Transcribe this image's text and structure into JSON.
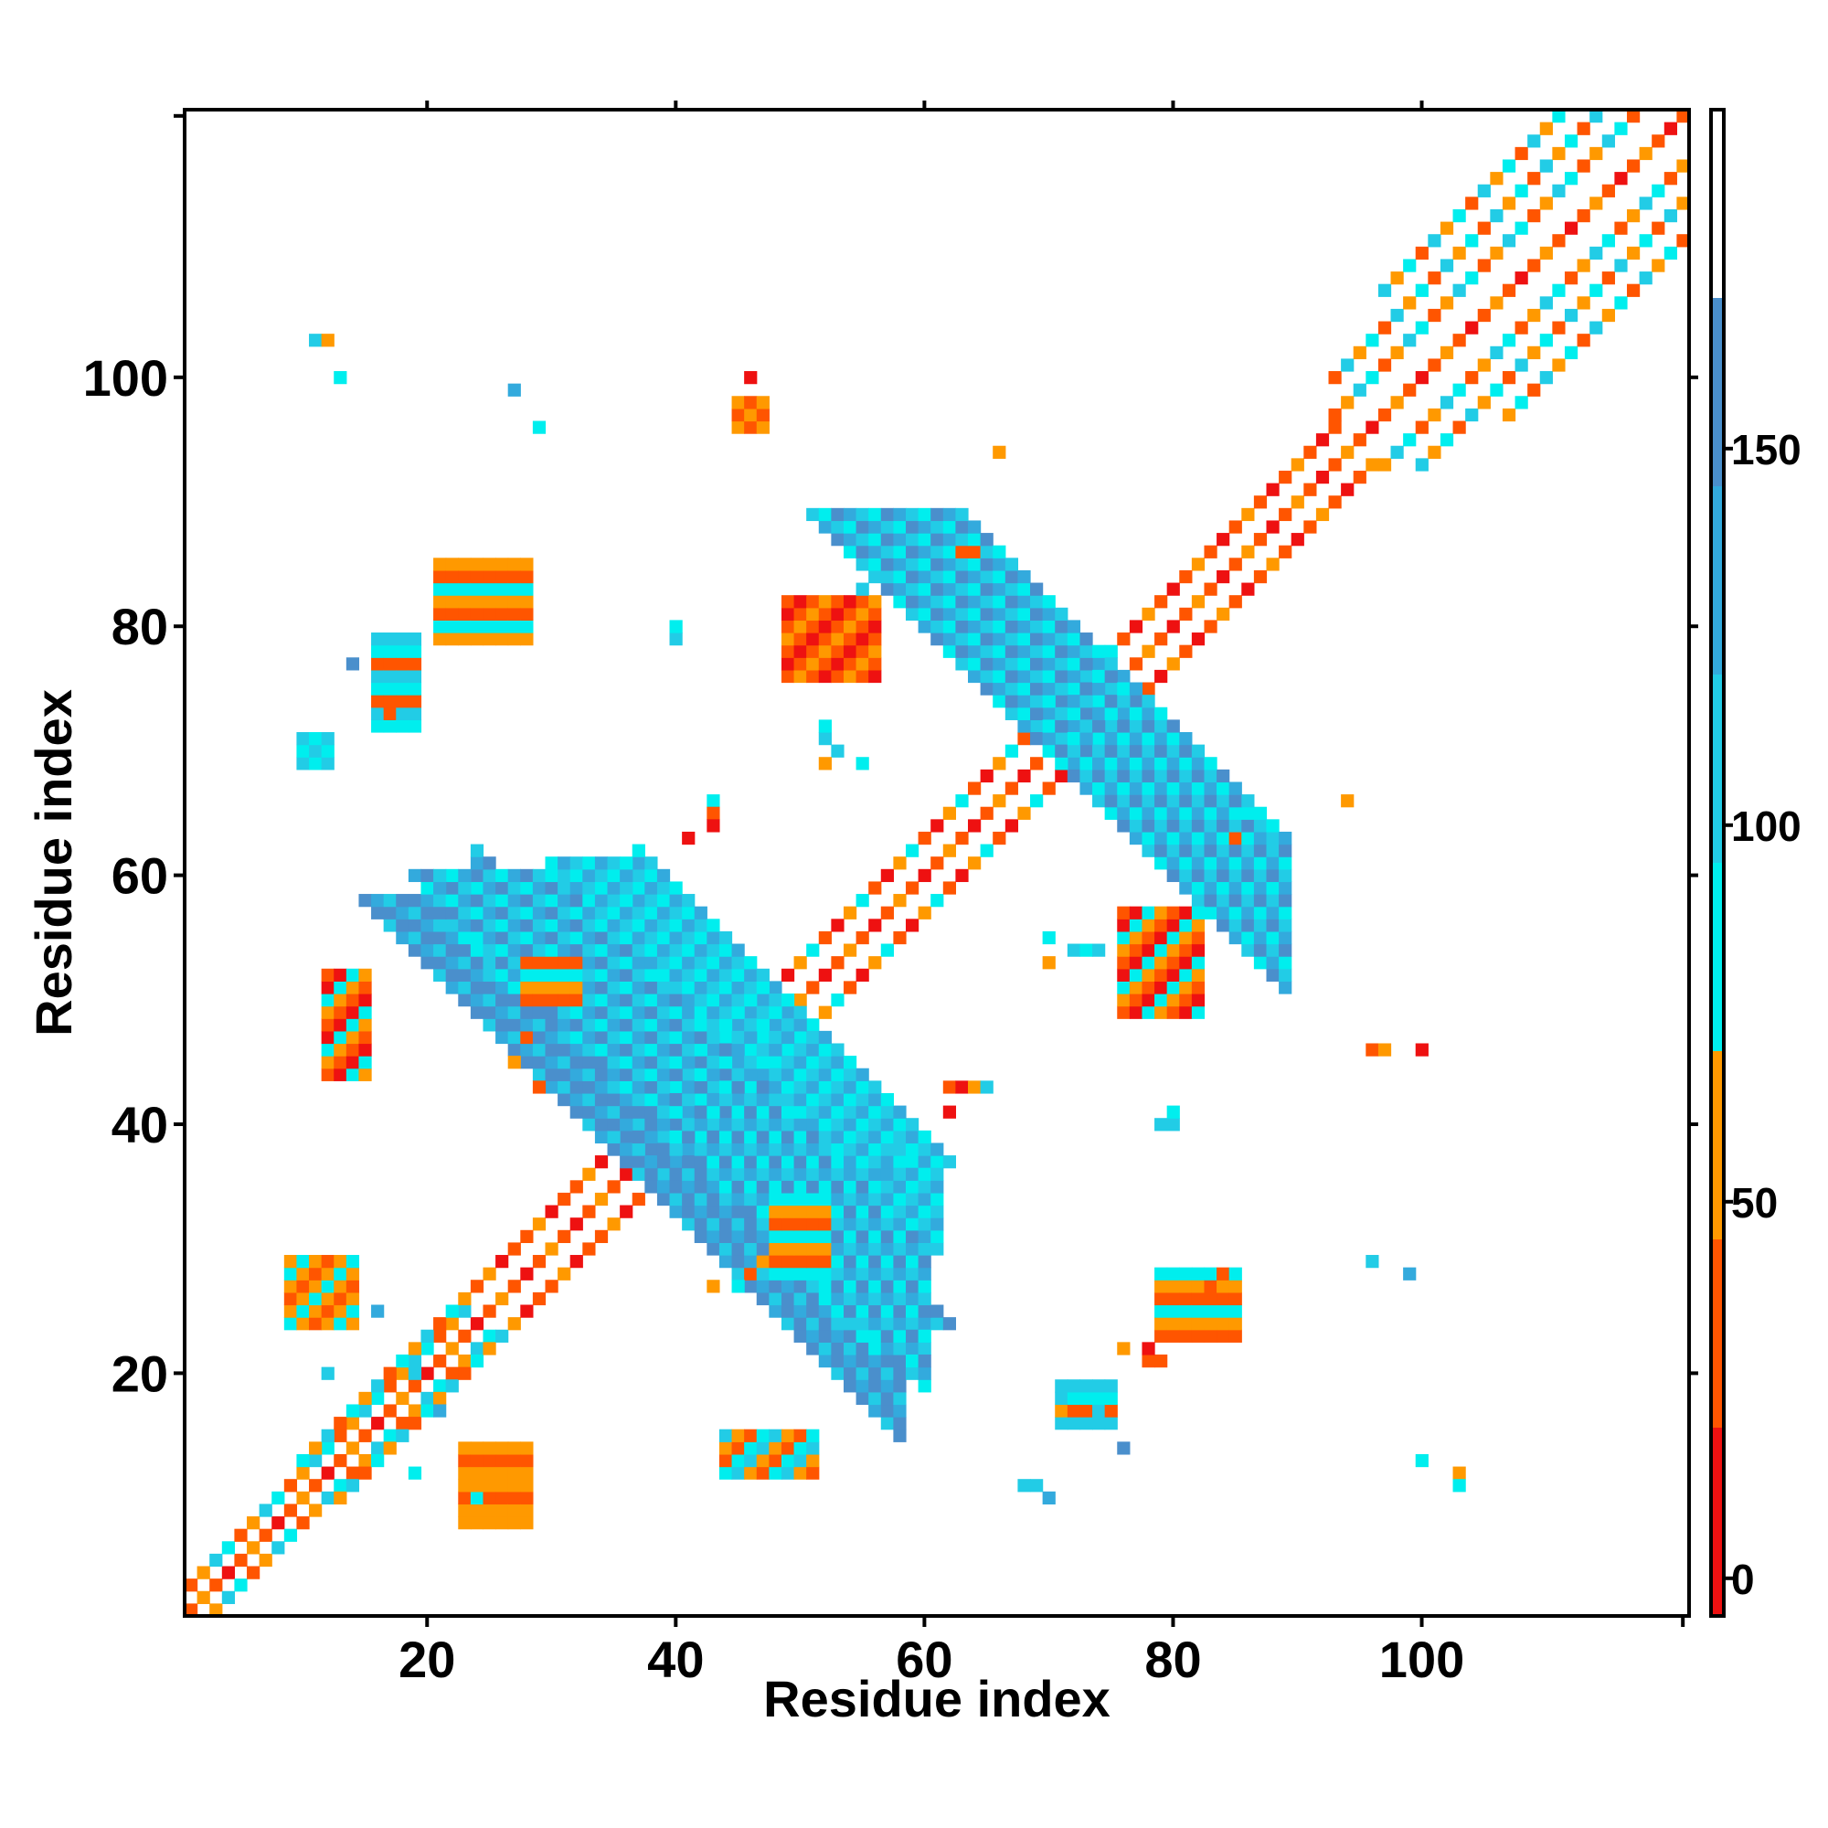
{
  "chart_data": {
    "type": "heatmap",
    "title": "",
    "xlabel": "Residue index",
    "ylabel": "Residue index",
    "xlim": [
      0.5,
      121.5
    ],
    "ylim": [
      0.5,
      121.5
    ],
    "x_ticks": [
      20,
      40,
      60,
      80,
      100
    ],
    "y_ticks": [
      20,
      40,
      60,
      80,
      100
    ],
    "colorbar": {
      "range": [
        -5,
        195
      ],
      "ticks": [
        0,
        50,
        100,
        150
      ],
      "bands": [
        {
          "from": -5,
          "to": 20,
          "color": "#ee1111"
        },
        {
          "from": 20,
          "to": 45,
          "color": "#ff5500"
        },
        {
          "from": 45,
          "to": 70,
          "color": "#ff9900"
        },
        {
          "from": 70,
          "to": 95,
          "color": "#00eeee"
        },
        {
          "from": 95,
          "to": 120,
          "color": "#22cce6"
        },
        {
          "from": 120,
          "to": 145,
          "color": "#33aadd"
        },
        {
          "from": 145,
          "to": 170,
          "color": "#4a8fcc"
        },
        {
          "from": 170,
          "to": 195,
          "color": "#ffffff"
        }
      ]
    },
    "colors": {
      "c1": "#ee1111",
      "c2": "#ff5500",
      "c3": "#ff9900",
      "c4": "#00eeee",
      "c5": "#22cce6",
      "c6": "#33aadd",
      "c7": "#4a8fcc"
    },
    "regions": [
      {
        "kind": "diag",
        "i1": 1,
        "i2": 121,
        "palette": [
          "c1",
          "c2",
          "c3",
          "c2"
        ]
      },
      {
        "kind": "diag",
        "i1": 1,
        "i2": 23,
        "offset": 2,
        "palette": [
          "c4",
          "c2",
          "c3",
          "c5"
        ]
      },
      {
        "kind": "diag",
        "i1": 10,
        "i2": 23,
        "offset": 3,
        "palette": [
          "c5",
          "c2",
          "c4",
          "c3"
        ]
      },
      {
        "kind": "diag",
        "i1": 24,
        "i2": 36,
        "offset": 3,
        "palette": [
          "c2",
          "c3",
          "c1",
          "c2"
        ]
      },
      {
        "kind": "diag",
        "i1": 36,
        "i2": 46,
        "offset": 3,
        "palette": [
          "c1",
          "c2",
          "c3",
          "c1"
        ]
      },
      {
        "kind": "diag",
        "i1": 47,
        "i2": 58,
        "offset": 3,
        "palette": [
          "c2",
          "c1",
          "c3",
          "c4"
        ]
      },
      {
        "kind": "diag",
        "i1": 59,
        "i2": 78,
        "offset": 3,
        "palette": [
          "c2",
          "c1",
          "c3",
          "c4"
        ]
      },
      {
        "kind": "diag",
        "i1": 78,
        "i2": 93,
        "offset": 3,
        "palette": [
          "c1",
          "c2",
          "c3",
          "c2"
        ]
      },
      {
        "kind": "diag",
        "i1": 93,
        "i2": 121,
        "offset": 4,
        "palette": [
          "c4",
          "c2",
          "c3",
          "c5"
        ]
      },
      {
        "kind": "diag",
        "i1": 93,
        "i2": 118,
        "offset": 7,
        "palette": [
          "c4",
          "c2",
          "c5",
          "c3"
        ]
      },
      {
        "kind": "diag",
        "i1": 97,
        "i2": 115,
        "offset": 10,
        "palette": [
          "c2",
          "c5",
          "c3",
          "c4"
        ]
      },
      {
        "kind": "anti",
        "s1": 73,
        "s2": 86,
        "t1": 24,
        "t2": 58,
        "palette": [
          "c7",
          "c6",
          "c5",
          "c7"
        ]
      },
      {
        "kind": "anti",
        "s1": 78,
        "s2": 82,
        "t1": 22,
        "t2": 28,
        "palette": [
          "c4",
          "c5",
          "c4"
        ]
      },
      {
        "kind": "anti",
        "s1": 82,
        "s2": 86,
        "t1": 28,
        "t2": 36,
        "palette": [
          "c5",
          "c4",
          "c6"
        ]
      },
      {
        "kind": "anti",
        "s1": 79,
        "s2": 93,
        "t1": 36,
        "t2": 60,
        "palette": [
          "c6",
          "c7",
          "c5",
          "c4"
        ]
      },
      {
        "kind": "anti",
        "s1": 140,
        "s2": 152,
        "t1": 64,
        "t2": 89,
        "palette": [
          "c7",
          "c6",
          "c5",
          "c4"
        ]
      },
      {
        "kind": "anti",
        "s1": 91,
        "s2": 99,
        "t1": 37,
        "t2": 48,
        "palette": [
          "c6",
          "c4",
          "c5"
        ]
      },
      {
        "kind": "anti",
        "s1": 91,
        "s2": 99,
        "t1": 48,
        "t2": 61,
        "palette": [
          "c4",
          "c6",
          "c5"
        ]
      },
      {
        "kind": "blob",
        "x1": 9,
        "x2": 14,
        "y1": 24,
        "y2": 29,
        "palette": [
          "c3",
          "c2",
          "c3",
          "c4"
        ]
      },
      {
        "kind": "blob",
        "x1": 23,
        "x2": 28,
        "y1": 8,
        "y2": 14,
        "palette": [
          "c3",
          "c2",
          "c3"
        ]
      },
      {
        "kind": "blob",
        "x1": 49,
        "x2": 56,
        "y1": 76,
        "y2": 82,
        "palette": [
          "c1",
          "c2",
          "c3",
          "c2"
        ]
      },
      {
        "kind": "blob",
        "x1": 76,
        "x2": 82,
        "y1": 49,
        "y2": 57,
        "palette": [
          "c1",
          "c2",
          "c3",
          "c4"
        ]
      },
      {
        "kind": "blob",
        "x1": 44,
        "x2": 51,
        "y1": 12,
        "y2": 15,
        "palette": [
          "c4",
          "c2",
          "c3",
          "c5"
        ]
      },
      {
        "kind": "blob",
        "x1": 12,
        "x2": 15,
        "y1": 44,
        "y2": 52,
        "palette": [
          "c2",
          "c3",
          "c4",
          "c1"
        ]
      },
      {
        "kind": "blob",
        "x1": 28,
        "x2": 32,
        "y1": 50,
        "y2": 53,
        "palette": [
          "c3",
          "c4",
          "c2"
        ]
      },
      {
        "kind": "blob",
        "x1": 48,
        "x2": 52,
        "y1": 28,
        "y2": 34,
        "palette": [
          "c3",
          "c4",
          "c2"
        ]
      },
      {
        "kind": "blob",
        "x1": 79,
        "x2": 85,
        "y1": 23,
        "y2": 28,
        "palette": [
          "c3",
          "c4",
          "c2"
        ]
      },
      {
        "kind": "blob",
        "x1": 21,
        "x2": 28,
        "y1": 79,
        "y2": 85,
        "palette": [
          "c2",
          "c3",
          "c4"
        ]
      },
      {
        "kind": "blob",
        "x1": 16,
        "x2": 19,
        "y1": 72,
        "y2": 79,
        "palette": [
          "c4",
          "c5",
          "c2"
        ]
      },
      {
        "kind": "blob",
        "x1": 71,
        "x2": 75,
        "y1": 16,
        "y2": 19,
        "palette": [
          "c4",
          "c5",
          "c2"
        ]
      },
      {
        "kind": "blob",
        "x1": 45,
        "x2": 47,
        "y1": 96,
        "y2": 98,
        "palette": [
          "c2",
          "c3"
        ]
      },
      {
        "kind": "blob",
        "x1": 10,
        "x2": 12,
        "y1": 69,
        "y2": 71,
        "palette": [
          "c4",
          "c5"
        ]
      }
    ],
    "points": [
      [
        11,
        103,
        "c5"
      ],
      [
        12,
        103,
        "c3"
      ],
      [
        13,
        100,
        "c4"
      ],
      [
        27,
        99,
        "c6"
      ],
      [
        29,
        96,
        "c4"
      ],
      [
        46,
        100,
        "c1"
      ],
      [
        66,
        94,
        "c3"
      ],
      [
        63,
        86,
        "c2"
      ],
      [
        64,
        86,
        "c2"
      ],
      [
        55,
        83,
        "c5"
      ],
      [
        56,
        84,
        "c5"
      ],
      [
        40,
        79,
        "c5"
      ],
      [
        40,
        80,
        "c4"
      ],
      [
        14,
        77,
        "c7"
      ],
      [
        17,
        73,
        "c2"
      ],
      [
        52,
        71,
        "c5"
      ],
      [
        52,
        72,
        "c4"
      ],
      [
        53,
        70,
        "c5"
      ],
      [
        52,
        69,
        "c3"
      ],
      [
        55,
        69,
        "c4"
      ],
      [
        43,
        66,
        "c4"
      ],
      [
        43,
        65,
        "c2"
      ],
      [
        41,
        63,
        "c1"
      ],
      [
        43,
        64,
        "c1"
      ],
      [
        94,
        66,
        "c3"
      ],
      [
        85,
        63,
        "c2"
      ],
      [
        70,
        55,
        "c4"
      ],
      [
        70,
        53,
        "c3"
      ],
      [
        72,
        54,
        "c5"
      ],
      [
        73,
        54,
        "c4"
      ],
      [
        74,
        54,
        "c5"
      ],
      [
        96,
        46,
        "c2"
      ],
      [
        97,
        46,
        "c3"
      ],
      [
        100,
        46,
        "c1"
      ],
      [
        62,
        43,
        "c2"
      ],
      [
        63,
        43,
        "c1"
      ],
      [
        64,
        43,
        "c3"
      ],
      [
        65,
        43,
        "c5"
      ],
      [
        62,
        41,
        "c1"
      ],
      [
        80,
        40,
        "c5"
      ],
      [
        79,
        40,
        "c5"
      ],
      [
        80,
        41,
        "c4"
      ],
      [
        96,
        29,
        "c5"
      ],
      [
        99,
        28,
        "c6"
      ],
      [
        84,
        28,
        "c2"
      ],
      [
        83,
        27,
        "c2"
      ],
      [
        76,
        22,
        "c3"
      ],
      [
        78,
        21,
        "c2"
      ],
      [
        79,
        21,
        "c2"
      ],
      [
        78,
        22,
        "c1"
      ],
      [
        71,
        18,
        "c5"
      ],
      [
        71,
        17,
        "c3"
      ],
      [
        74,
        17,
        "c5"
      ],
      [
        76,
        14,
        "c7"
      ],
      [
        68,
        11,
        "c5"
      ],
      [
        69,
        11,
        "c5"
      ],
      [
        70,
        10,
        "c6"
      ],
      [
        100,
        13,
        "c4"
      ],
      [
        103,
        12,
        "c3"
      ],
      [
        103,
        11,
        "c4"
      ],
      [
        19,
        20,
        "c5"
      ],
      [
        12,
        20,
        "c5"
      ],
      [
        21,
        17,
        "c6"
      ],
      [
        16,
        25,
        "c6"
      ],
      [
        19,
        12,
        "c4"
      ],
      [
        24,
        10,
        "c4"
      ],
      [
        25,
        8,
        "c3"
      ],
      [
        27,
        45,
        "c3"
      ],
      [
        28,
        47,
        "c2"
      ],
      [
        29,
        43,
        "c2"
      ],
      [
        43,
        27,
        "c3"
      ],
      [
        45,
        27,
        "c4"
      ],
      [
        46,
        28,
        "c2"
      ],
      [
        47,
        29,
        "c3"
      ],
      [
        58,
        38,
        "c5"
      ],
      [
        59,
        37,
        "c4"
      ],
      [
        57,
        36,
        "c6"
      ],
      [
        88,
        63,
        "c5"
      ],
      [
        88,
        64,
        "c4"
      ],
      [
        86,
        65,
        "c4"
      ]
    ]
  }
}
